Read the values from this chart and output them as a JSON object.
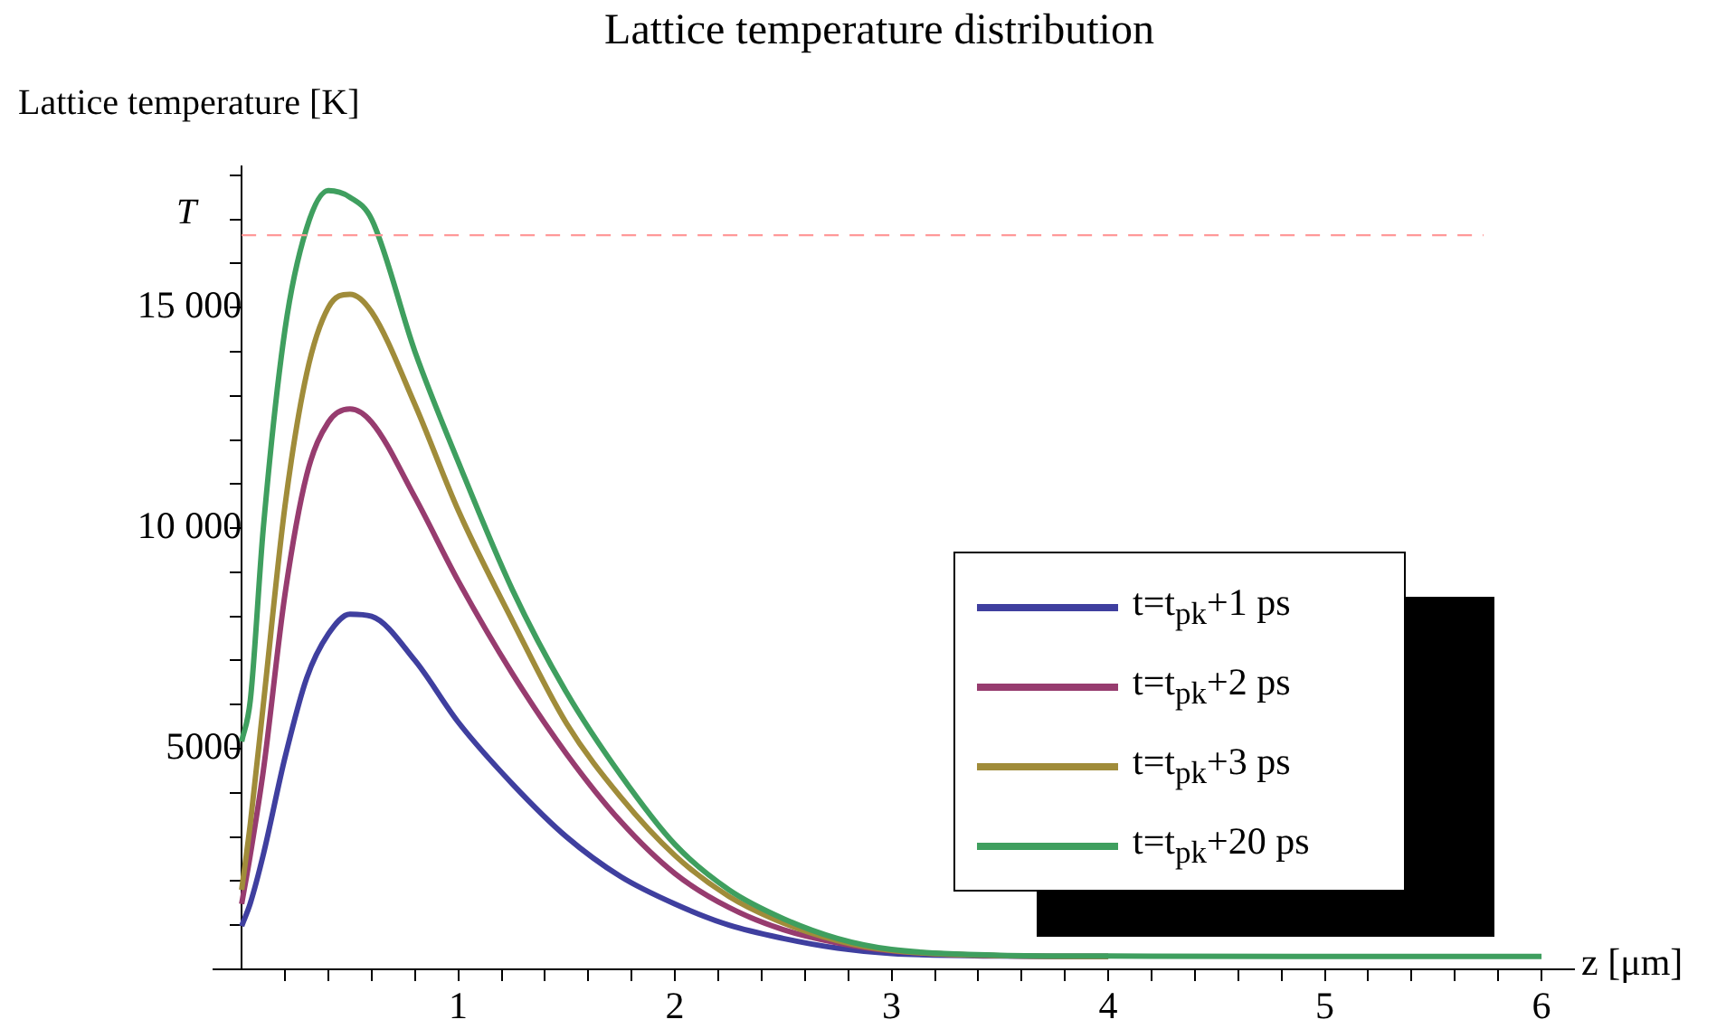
{
  "chart_data": {
    "type": "line",
    "title": "Lattice temperature distribution",
    "xlabel": "z [μm]",
    "ylabel": "Lattice temperature [K]",
    "xlim": [
      -0.13,
      6.15
    ],
    "ylim": [
      0,
      18200
    ],
    "xticks": [
      {
        "value": 0.2,
        "label": null
      },
      {
        "value": 0.4,
        "label": null
      },
      {
        "value": 0.6,
        "label": null
      },
      {
        "value": 0.8,
        "label": null
      },
      1,
      {
        "value": 1.2,
        "label": null
      },
      {
        "value": 1.4,
        "label": null
      },
      {
        "value": 1.6,
        "label": null
      },
      {
        "value": 1.8,
        "label": null
      },
      2,
      {
        "value": 2.2,
        "label": null
      },
      {
        "value": 2.4,
        "label": null
      },
      {
        "value": 2.6,
        "label": null
      },
      {
        "value": 2.8,
        "label": null
      },
      3,
      {
        "value": 3.2,
        "label": null
      },
      {
        "value": 3.4,
        "label": null
      },
      {
        "value": 3.6,
        "label": null
      },
      {
        "value": 3.8,
        "label": null
      },
      4,
      {
        "value": 4.2,
        "label": null
      },
      {
        "value": 4.4,
        "label": null
      },
      {
        "value": 4.6,
        "label": null
      },
      {
        "value": 4.8,
        "label": null
      },
      5,
      {
        "value": 5.2,
        "label": null
      },
      {
        "value": 5.4,
        "label": null
      },
      {
        "value": 5.6,
        "label": null
      },
      {
        "value": 5.8,
        "label": null
      },
      6
    ],
    "yticks": [
      {
        "value": 1000,
        "label": null
      },
      {
        "value": 2000,
        "label": null
      },
      {
        "value": 3000,
        "label": null
      },
      {
        "value": 4000,
        "label": null
      },
      5000,
      {
        "value": 6000,
        "label": null
      },
      {
        "value": 7000,
        "label": null
      },
      {
        "value": 8000,
        "label": null
      },
      {
        "value": 9000,
        "label": null
      },
      {
        "value": 10000,
        "label": "10 000"
      },
      {
        "value": 11000,
        "label": null
      },
      {
        "value": 12000,
        "label": null
      },
      {
        "value": 13000,
        "label": null
      },
      {
        "value": 14000,
        "label": null
      },
      {
        "value": 15000,
        "label": "15 000"
      },
      {
        "value": 16000,
        "label": null
      },
      {
        "value": 17000,
        "label": null
      },
      {
        "value": 18000,
        "label": null
      }
    ],
    "x": [
      0,
      0.04,
      0.1,
      0.2,
      0.3,
      0.4,
      0.5,
      0.6,
      0.8,
      1.0,
      1.25,
      1.5,
      1.75,
      2.0,
      2.25,
      2.5,
      2.75,
      3.0,
      3.5,
      4,
      5,
      6
    ],
    "series": [
      {
        "name": "t=t$_{pk}$+1 ps",
        "color": "#3f3f9f",
        "values": [
          980,
          1500,
          2600,
          4800,
          6600,
          7600,
          8050,
          8000,
          7000,
          5600,
          4200,
          3000,
          2100,
          1480,
          1000,
          700,
          480,
          360,
          300,
          290,
          null,
          null
        ]
      },
      {
        "name": "t=t$_{pk}$+2 ps",
        "color": "#973c6f",
        "values": [
          1480,
          2600,
          4500,
          8500,
          11200,
          12400,
          12700,
          12400,
          10700,
          8800,
          6700,
          4880,
          3350,
          2170,
          1400,
          900,
          600,
          420,
          310,
          290,
          null,
          null
        ]
      },
      {
        "name": "t=t$_{pk}$+3 ps",
        "color": "#a08c3a",
        "values": [
          1800,
          3300,
          6000,
          10500,
          13500,
          15000,
          15300,
          14900,
          12800,
          10400,
          7900,
          5570,
          3900,
          2580,
          1650,
          1050,
          650,
          430,
          310,
          290,
          null,
          null
        ]
      },
      {
        "name": "t=t$_{pk}$+20 ps",
        "color": "#3f9f5f",
        "values": [
          5160,
          6100,
          10000,
          14500,
          16800,
          17650,
          17500,
          17000,
          14000,
          11500,
          8600,
          6270,
          4400,
          2830,
          1800,
          1150,
          700,
          450,
          320,
          300,
          290,
          290
        ]
      }
    ],
    "ref_lines": [
      {
        "axis": "y",
        "value": 16640,
        "label": "T",
        "color": "#ff9999",
        "line_style": "dashed"
      }
    ],
    "legend": "right",
    "grid": false,
    "marker": "none",
    "line_style": "solid"
  }
}
